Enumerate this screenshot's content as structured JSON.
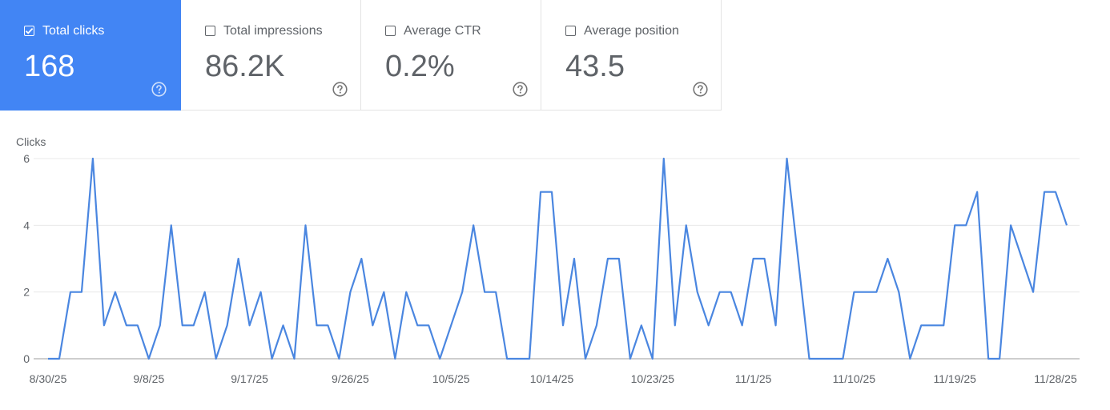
{
  "metrics": [
    {
      "label": "Total clicks",
      "value": "168",
      "checked": true
    },
    {
      "label": "Total impressions",
      "value": "86.2K",
      "checked": false
    },
    {
      "label": "Average CTR",
      "value": "0.2%",
      "checked": false
    },
    {
      "label": "Average position",
      "value": "43.5",
      "checked": false
    }
  ],
  "colors": {
    "accent": "#4285f4",
    "line": "#4a86e0",
    "text": "#5f6368",
    "grid": "#e8e8e8"
  },
  "chart_data": {
    "type": "line",
    "ylabel": "Clicks",
    "ylim": [
      0,
      6
    ],
    "yticks": [
      "0",
      "2",
      "4",
      "6"
    ],
    "xticks": [
      "8/30/25",
      "9/8/25",
      "9/17/25",
      "9/26/25",
      "10/5/25",
      "10/14/25",
      "10/23/25",
      "11/1/25",
      "11/10/25",
      "11/19/25",
      "11/28/25"
    ],
    "x_start": "2025-08-30",
    "x_end": "2025-11-28",
    "grid": true,
    "series": [
      {
        "values": [
          0,
          0,
          2,
          2,
          6,
          1,
          2,
          1,
          1,
          0,
          1,
          4,
          1,
          1,
          2,
          0,
          1,
          3,
          1,
          2,
          0,
          1,
          0,
          4,
          1,
          1,
          0,
          2,
          3,
          1,
          2,
          0,
          2,
          1,
          1,
          0,
          1,
          2,
          4,
          2,
          2,
          0,
          0,
          0,
          5,
          5,
          1,
          3,
          0,
          1,
          3,
          3,
          0,
          1,
          0,
          6,
          1,
          4,
          2,
          1,
          2,
          2,
          1,
          3,
          3,
          1,
          6,
          3,
          0,
          0,
          0,
          0,
          2,
          2,
          2,
          3,
          2,
          0,
          1,
          1,
          1,
          4,
          4,
          5,
          0,
          0,
          4,
          3,
          2,
          5,
          5,
          4
        ]
      }
    ]
  }
}
